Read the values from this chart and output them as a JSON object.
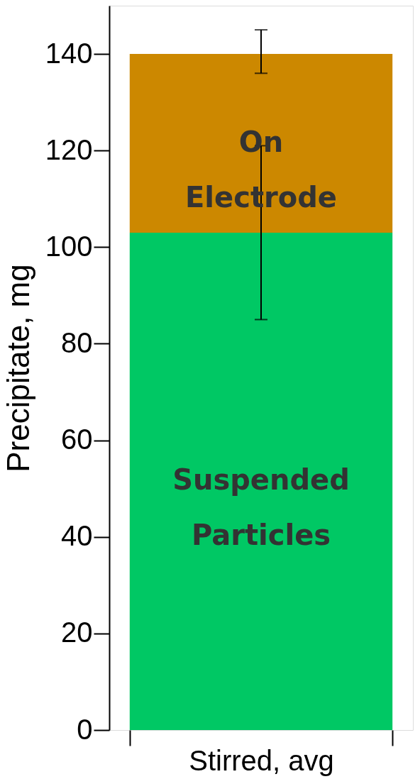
{
  "chart_data": {
    "type": "bar",
    "stacked": true,
    "ylabel": "Precipitate, mg",
    "categories": [
      "Stirred, avg"
    ],
    "series": [
      {
        "name": "Suspended Particles",
        "color": "#00c864",
        "values": [
          103
        ],
        "errors": [
          [
            85,
            121
          ]
        ]
      },
      {
        "name": "On Electrode",
        "color": "#cc8800",
        "values": [
          37
        ],
        "errors": [
          [
            136,
            145
          ]
        ]
      }
    ],
    "ylim": [
      0,
      150
    ],
    "yticks": [
      0,
      20,
      40,
      60,
      80,
      100,
      120,
      140
    ],
    "grid": false
  }
}
